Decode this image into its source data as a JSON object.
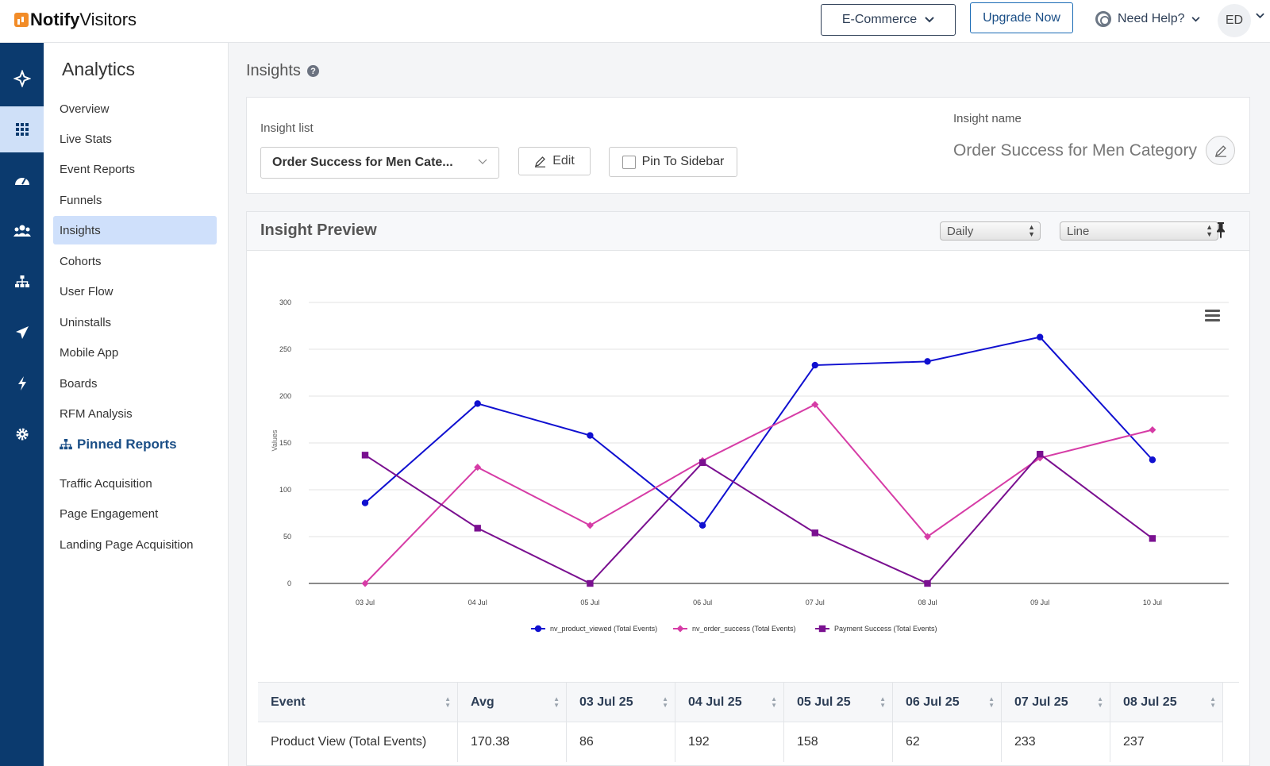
{
  "brand": {
    "name_bold": "Notify",
    "name_regular": "Visitors"
  },
  "header": {
    "project_selector": "E-Commerce",
    "upgrade": "Upgrade Now",
    "help": "Need Help?",
    "user_initials": "ED"
  },
  "rail": [
    "sparkle-icon",
    "grid-icon",
    "dashboard-icon",
    "users-icon",
    "sitemap-icon",
    "send-icon",
    "bolt-icon",
    "settings-icon"
  ],
  "sidebar": {
    "title": "Analytics",
    "items": [
      "Overview",
      "Live Stats",
      "Event Reports",
      "Funnels",
      "Insights",
      "Cohorts",
      "User Flow",
      "Uninstalls",
      "Mobile App",
      "Boards",
      "RFM Analysis"
    ],
    "active": "Insights",
    "pinned_title": "Pinned Reports",
    "pinned_items": [
      "Traffic Acquisition",
      "Page Engagement",
      "Landing Page Acquisition"
    ]
  },
  "page": {
    "title": "Insights"
  },
  "insight_card": {
    "list_label": "Insight list",
    "selected": "Order Success for Men Cate...",
    "edit": "Edit",
    "pin": "Pin To Sidebar",
    "name_label": "Insight name",
    "name_value": "Order Success for Men Category"
  },
  "preview": {
    "title": "Insight Preview",
    "interval": "Daily",
    "chart_type": "Line"
  },
  "chart_data": {
    "type": "line",
    "ylabel": "Values",
    "ylim": [
      0,
      300
    ],
    "yticks": [
      0,
      50,
      100,
      150,
      200,
      250,
      300
    ],
    "categories": [
      "03 Jul",
      "04 Jul",
      "05 Jul",
      "06 Jul",
      "07 Jul",
      "08 Jul",
      "09 Jul",
      "10 Jul"
    ],
    "legend_position": "bottom",
    "series": [
      {
        "name": "nv_product_viewed (Total Events)",
        "color": "#1010d0",
        "marker": "circle",
        "values": [
          86,
          192,
          158,
          62,
          233,
          237,
          263,
          132
        ]
      },
      {
        "name": "nv_order_success (Total Events)",
        "color": "#d63ca6",
        "marker": "diamond",
        "values": [
          0,
          124,
          62,
          131,
          191,
          50,
          134,
          164
        ]
      },
      {
        "name": "Payment Success (Total Events)",
        "color": "#7a1090",
        "marker": "square",
        "values": [
          137,
          59,
          0,
          129,
          54,
          0,
          138,
          48
        ]
      }
    ]
  },
  "table": {
    "headers": [
      "Event",
      "Avg",
      "03 Jul 25",
      "04 Jul 25",
      "05 Jul 25",
      "06 Jul 25",
      "07 Jul 25",
      "08 Jul 25"
    ],
    "rows": [
      [
        "Product View (Total Events)",
        "170.38",
        "86",
        "192",
        "158",
        "62",
        "233",
        "237"
      ]
    ]
  }
}
